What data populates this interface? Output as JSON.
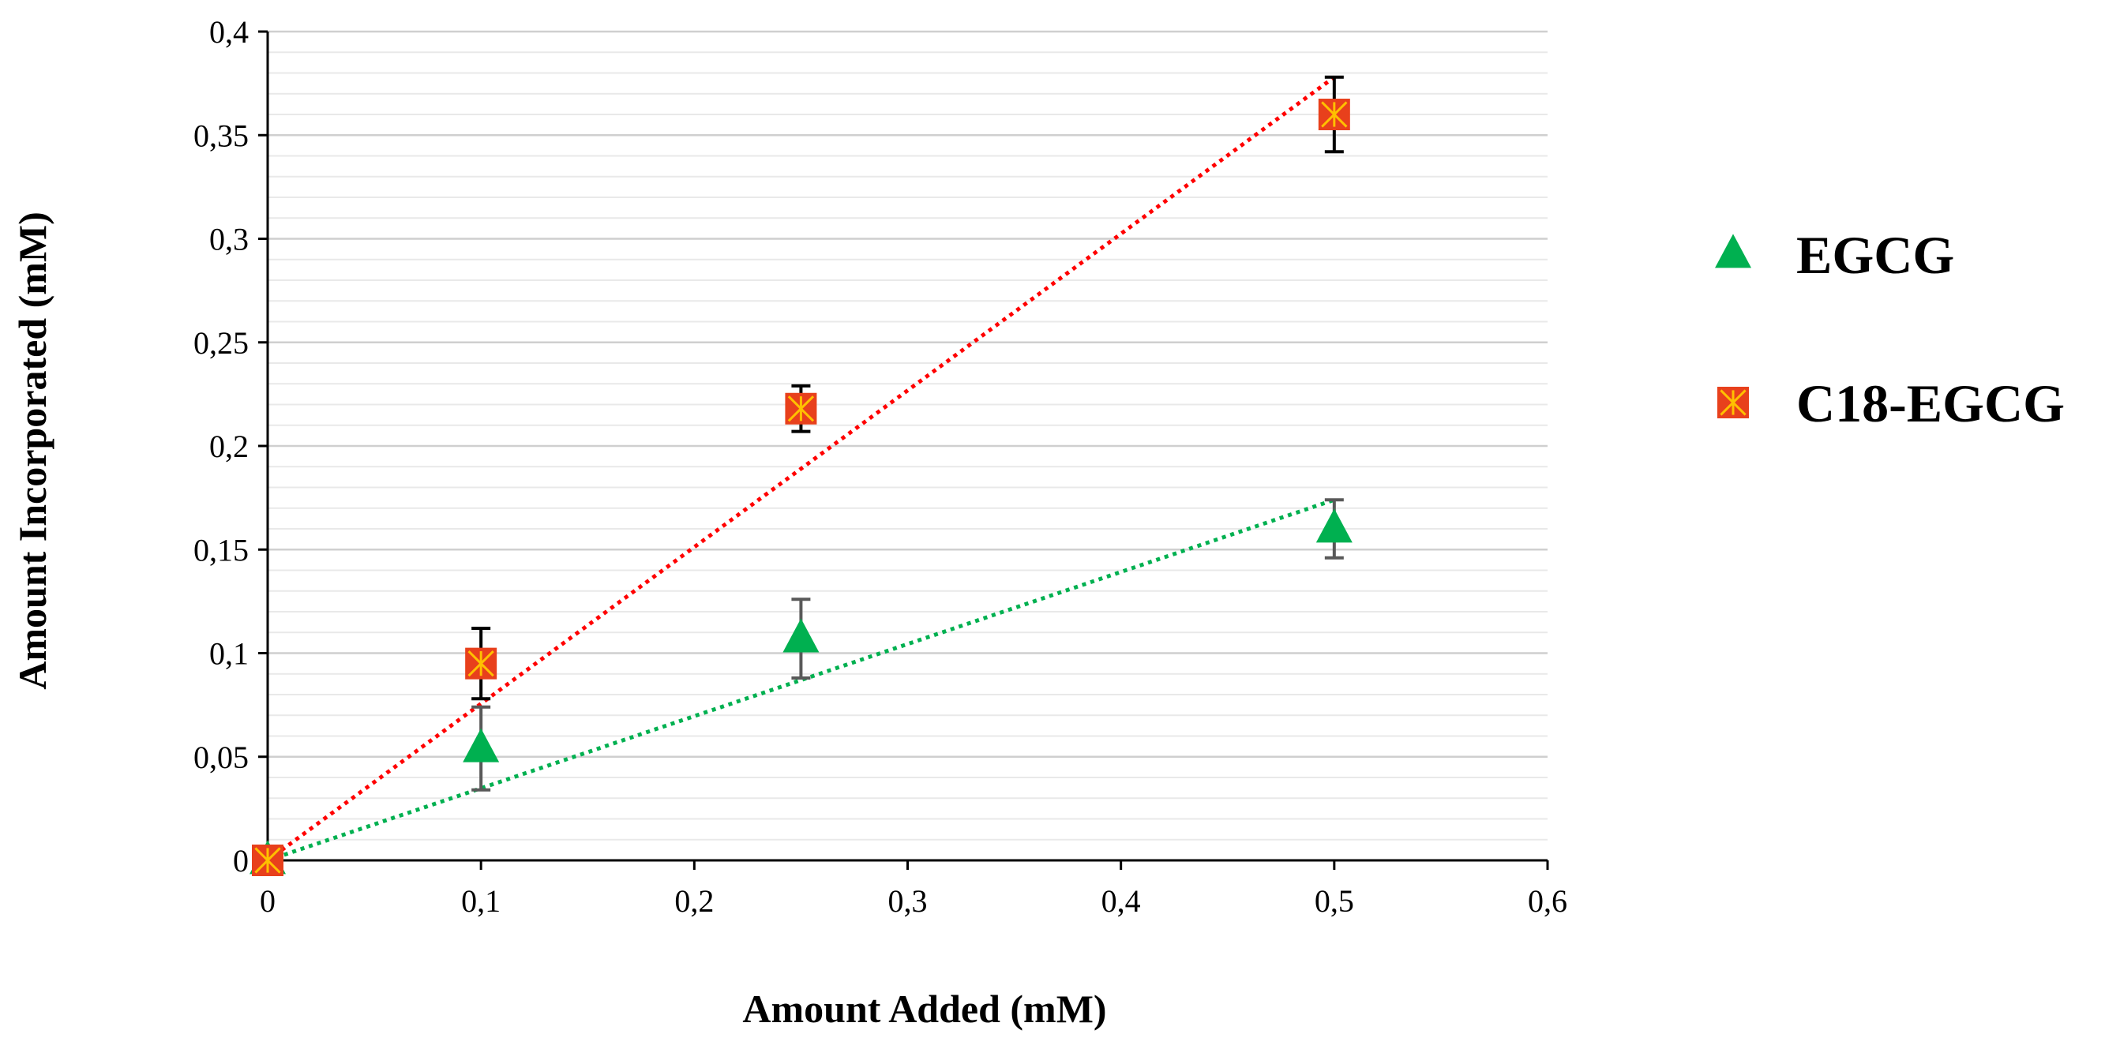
{
  "chart_data": {
    "type": "scatter",
    "xlabel": "Amount Added (mM)",
    "ylabel": "Amount Incorporated (mM)",
    "xlim": [
      0,
      0.6
    ],
    "ylim": [
      0,
      0.4
    ],
    "x_ticks": [
      0,
      0.1,
      0.2,
      0.3,
      0.4,
      0.5,
      0.6
    ],
    "x_tick_labels": [
      "0",
      "0,1",
      "0,2",
      "0,3",
      "0,4",
      "0,5",
      "0,6"
    ],
    "y_ticks": [
      0,
      0.05,
      0.1,
      0.15,
      0.2,
      0.25,
      0.3,
      0.35,
      0.4
    ],
    "y_tick_labels": [
      "0",
      "0,05",
      "0,1",
      "0,15",
      "0,2",
      "0,25",
      "0,3",
      "0,35",
      "0,4"
    ],
    "grid": true,
    "minor_grid_step": 0.01,
    "legend_position": "right",
    "series": [
      {
        "name": "EGCG",
        "marker": "triangle",
        "color": "#00b050",
        "error_color": "#595959",
        "x": [
          0,
          0.1,
          0.25,
          0.5
        ],
        "y": [
          0,
          0.054,
          0.107,
          0.16
        ],
        "error": [
          0,
          0.02,
          0.019,
          0.014
        ],
        "trendline": {
          "type": "linear",
          "x": [
            0,
            0.5
          ],
          "y": [
            0,
            0.174
          ],
          "style": "dotted"
        }
      },
      {
        "name": "C18-EGCG",
        "marker": "square-star",
        "color": "#ff0000",
        "marker_fill": "#e8401c",
        "marker_accent": "#ffc000",
        "error_color": "#000000",
        "x": [
          0,
          0.1,
          0.25,
          0.5
        ],
        "y": [
          0,
          0.095,
          0.218,
          0.36
        ],
        "error": [
          0,
          0.017,
          0.011,
          0.018
        ],
        "trendline": {
          "type": "linear",
          "x": [
            0,
            0.5
          ],
          "y": [
            0,
            0.378
          ],
          "style": "dotted"
        }
      }
    ]
  }
}
